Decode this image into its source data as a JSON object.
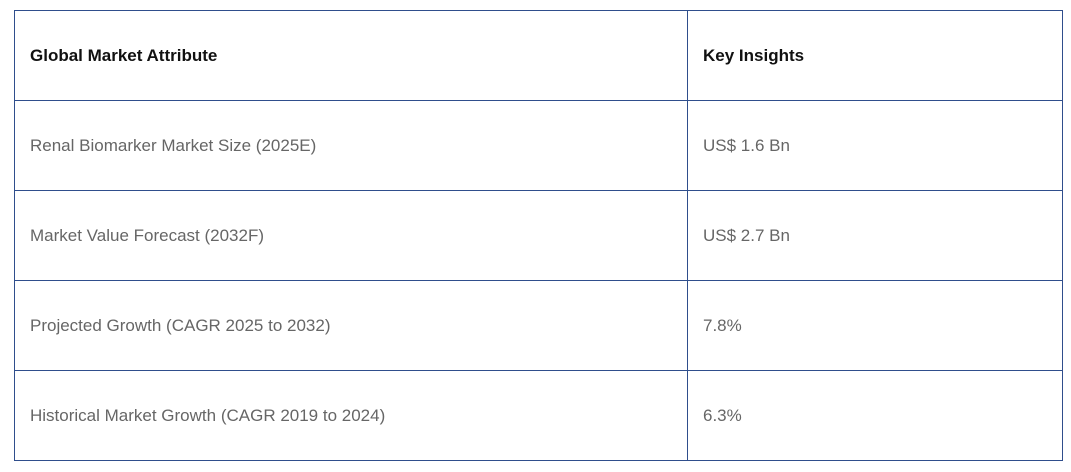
{
  "table": {
    "headers": [
      "Global Market Attribute",
      "Key Insights"
    ],
    "rows": [
      [
        "Renal Biomarker Market Size (2025E)",
        "US$ 1.6 Bn"
      ],
      [
        "Market Value Forecast (2032F)",
        "US$ 2.7 Bn"
      ],
      [
        "Projected Growth (CAGR 2025 to 2032)",
        "7.8%"
      ],
      [
        "Historical Market Growth (CAGR 2019 to 2024)",
        "6.3%"
      ]
    ]
  }
}
